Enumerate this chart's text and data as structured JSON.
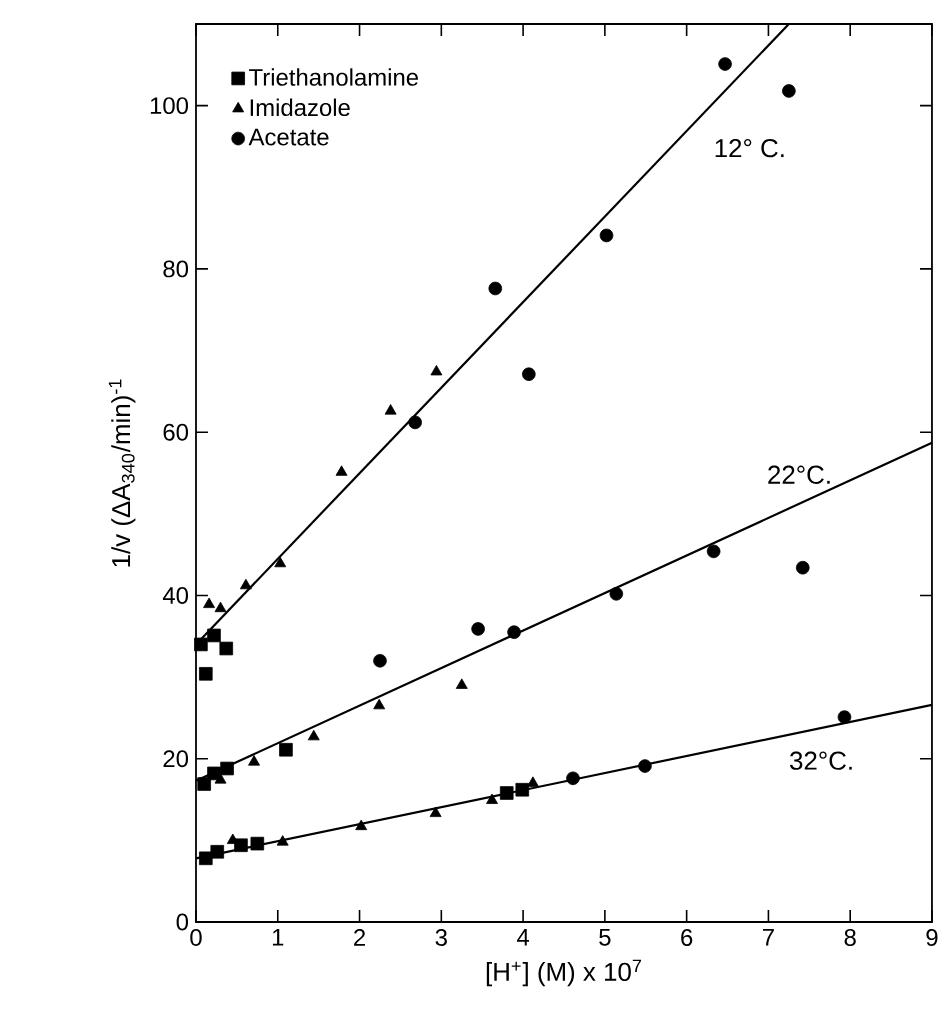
{
  "chart_data": {
    "type": "scatter",
    "xlabel": "[H$^{+}$] (M) x 10$^{7}$",
    "ylabel": "1/v  (ΔA$_{340}$/min)$^{-1}$",
    "xlim": [
      0,
      9
    ],
    "ylim": [
      0,
      110
    ],
    "xticks": [
      0,
      1,
      2,
      3,
      4,
      5,
      6,
      7,
      8,
      9
    ],
    "yticks": [
      0,
      20,
      40,
      60,
      80,
      100
    ],
    "legend": "top left",
    "grid": false,
    "series": [
      {
        "name": "Triethanolamine",
        "color": "#000000",
        "marker": "square",
        "x": [
          0.06,
          0.12,
          0.22,
          0.37,
          0.1,
          0.22,
          0.38,
          1.1,
          0.12,
          0.26,
          0.55,
          0.75,
          3.8,
          3.99
        ],
        "values": [
          34.0,
          30.4,
          35.1,
          33.5,
          16.9,
          18.2,
          18.8,
          21.1,
          7.8,
          8.6,
          9.4,
          9.6,
          15.8,
          16.2
        ]
      },
      {
        "name": "Imidazole",
        "color": "#000000",
        "marker": "triangle",
        "x": [
          0.16,
          0.3,
          0.61,
          1.03,
          1.78,
          2.38,
          2.94,
          0.3,
          0.71,
          1.44,
          2.24,
          3.25,
          0.45,
          1.06,
          2.02,
          2.93,
          3.62,
          4.12
        ],
        "values": [
          38.9,
          38.4,
          41.2,
          43.9,
          55.1,
          62.6,
          67.4,
          17.4,
          19.6,
          22.7,
          26.5,
          29.0,
          10.0,
          9.8,
          11.7,
          13.3,
          14.9,
          17.0
        ]
      },
      {
        "name": "Acetate",
        "color": "#000000",
        "marker": "circle",
        "x": [
          2.68,
          3.66,
          4.07,
          5.02,
          6.47,
          7.25,
          2.25,
          3.45,
          3.89,
          5.14,
          6.33,
          7.42,
          4.61,
          5.49,
          7.93
        ],
        "values": [
          61.2,
          77.6,
          67.1,
          84.1,
          105.1,
          101.8,
          32.0,
          35.9,
          35.5,
          40.2,
          45.4,
          43.4,
          17.6,
          19.1,
          25.1
        ]
      },
      {
        "type": "line",
        "color": "#000000",
        "x": [
          0,
          7.25
        ],
        "values": [
          34,
          110
        ]
      },
      {
        "type": "line",
        "color": "#000000",
        "x": [
          0,
          9
        ],
        "values": [
          17.3,
          58.7
        ]
      },
      {
        "type": "line",
        "color": "#000000",
        "x": [
          0,
          9
        ],
        "values": [
          7.8,
          26.6
        ]
      }
    ],
    "annotations": [
      "12° C.",
      "22°C.",
      "32°C."
    ]
  }
}
